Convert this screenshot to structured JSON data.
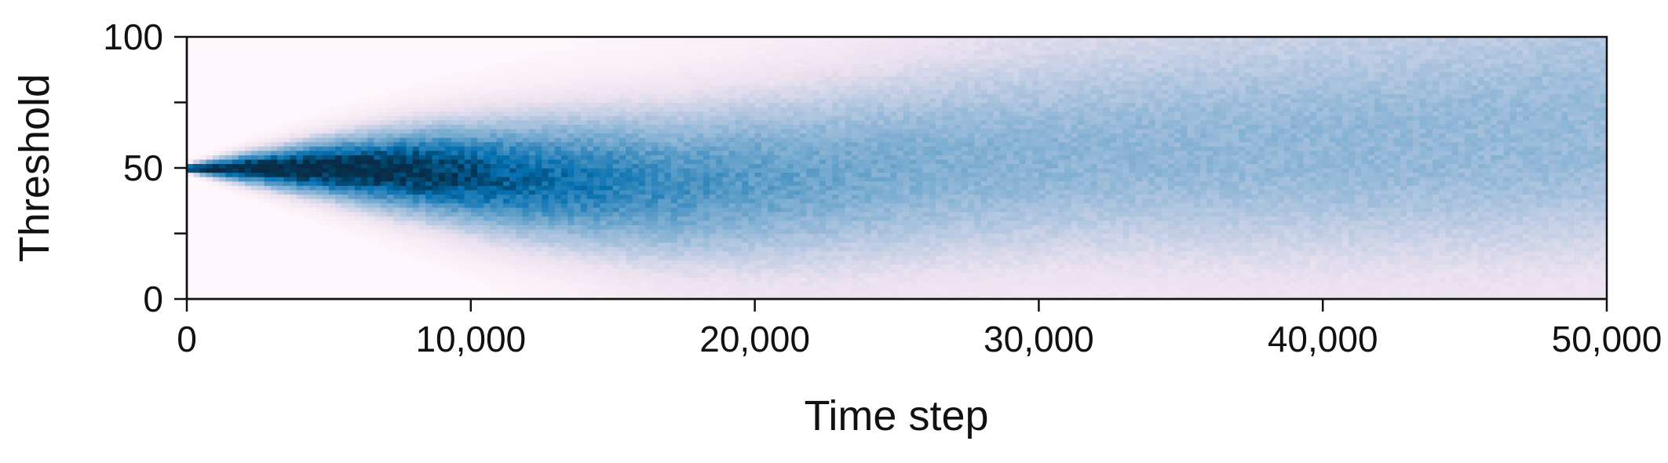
{
  "chart_data": {
    "type": "heatmap",
    "title": "",
    "xlabel": "Time step",
    "ylabel": "Threshold",
    "xlim": [
      0,
      50000
    ],
    "ylim": [
      0,
      100
    ],
    "xticks": [
      0,
      10000,
      20000,
      30000,
      40000,
      50000
    ],
    "xtick_labels": [
      "0",
      "10,000",
      "20,000",
      "30,000",
      "40,000",
      "50,000"
    ],
    "yticks": [
      0,
      50,
      100
    ],
    "ytick_labels": [
      "0",
      "50",
      "100"
    ],
    "y_minor_ticks": [
      25,
      75
    ],
    "grid": false,
    "colormap": "PuBu",
    "colors": {
      "low": "#fff7fb",
      "mid_low": "#ece2f0",
      "mid": "#74a9cf",
      "mid_high": "#0570b0",
      "high": "#023858",
      "max": "#0a2a45"
    },
    "density_profile": {
      "description_of_values": "distribution of threshold values over time",
      "time": [
        0,
        2000,
        5000,
        8000,
        12000,
        17000,
        22000,
        27000,
        32000,
        37000,
        42000,
        46000,
        50000
      ],
      "center": [
        50,
        50,
        50,
        49,
        46,
        44,
        47,
        52,
        55,
        56,
        57,
        58,
        60
      ],
      "spread": [
        1,
        4,
        8,
        12,
        17,
        22,
        26,
        29,
        31,
        33,
        34,
        35,
        36
      ],
      "peak_intensity": [
        1.0,
        1.0,
        1.0,
        0.95,
        0.78,
        0.62,
        0.52,
        0.46,
        0.43,
        0.42,
        0.42,
        0.41,
        0.4
      ]
    }
  }
}
